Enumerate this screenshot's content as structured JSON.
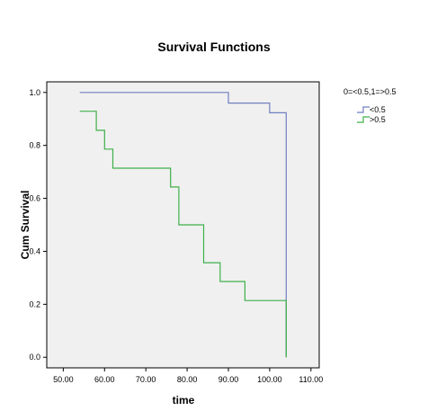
{
  "chart_data": {
    "type": "line",
    "step": true,
    "title": "Survival Functions",
    "xlabel": "time",
    "ylabel": "Cum Survival",
    "xlim": [
      46,
      112
    ],
    "ylim": [
      -0.04,
      1.04
    ],
    "x_ticks": [
      50,
      60,
      70,
      80,
      90,
      100,
      110
    ],
    "x_tick_labels": [
      "50.00",
      "60.00",
      "70.00",
      "80.00",
      "90.00",
      "100.00",
      "110.00"
    ],
    "y_ticks": [
      0,
      0.2,
      0.4,
      0.6,
      0.8,
      1.0
    ],
    "y_tick_labels": [
      "0.0",
      "0.2",
      "0.4",
      "0.6",
      "0.8",
      "1.0"
    ],
    "grid": false,
    "legend_title": "0=<0.5,1=>0.5",
    "legend_position": "right",
    "plot_background": "#f0f0f0",
    "series": [
      {
        "name": "<0.5",
        "color": "#6f7fc0",
        "points": [
          [
            54,
            1.0
          ],
          [
            90,
            1.0
          ],
          [
            90,
            0.96
          ],
          [
            100,
            0.96
          ],
          [
            100,
            0.923
          ],
          [
            104,
            0.923
          ],
          [
            104,
            0.0
          ]
        ]
      },
      {
        "name": ">0.5",
        "color": "#3fb04a",
        "points": [
          [
            54,
            0.929
          ],
          [
            58,
            0.929
          ],
          [
            58,
            0.857
          ],
          [
            60,
            0.857
          ],
          [
            60,
            0.786
          ],
          [
            62,
            0.786
          ],
          [
            62,
            0.714
          ],
          [
            76,
            0.714
          ],
          [
            76,
            0.643
          ],
          [
            78,
            0.643
          ],
          [
            78,
            0.5
          ],
          [
            84,
            0.5
          ],
          [
            84,
            0.357
          ],
          [
            88,
            0.357
          ],
          [
            88,
            0.286
          ],
          [
            94,
            0.286
          ],
          [
            94,
            0.214
          ],
          [
            104,
            0.214
          ],
          [
            104,
            0.0
          ]
        ]
      }
    ]
  }
}
